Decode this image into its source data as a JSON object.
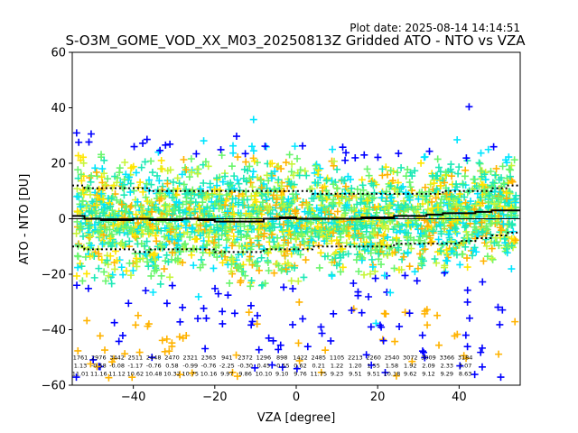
{
  "chart_data": {
    "type": "scatter",
    "title": "S-O3M_GOME_VOD_XX_M03_20250813Z Gridded ATO - NTO vs VZA",
    "plot_date": "Plot date: 2025-08-14 14:14:51",
    "xlabel": "VZA [degree]",
    "ylabel": "ATO - NTO [DU]",
    "xlim": [
      -55,
      55
    ],
    "ylim": [
      -60,
      60
    ],
    "xticks": [
      -40,
      -20,
      0,
      20,
      40
    ],
    "yticks": [
      -60,
      -40,
      -20,
      0,
      20,
      40,
      60
    ],
    "marker": "+",
    "colors": {
      "axis": "#000000",
      "blue": "#0000ff",
      "cyan": "#00e5ff",
      "turquoise": "#1de9b6",
      "lightgreen": "#69f56c",
      "yellowgreen": "#c6f53b",
      "yellow": "#ffe600",
      "orange": "#ffb300"
    },
    "bins_x": [
      -54,
      -50,
      -46,
      -42,
      -38,
      -34,
      -30,
      -26,
      -22,
      -18,
      -14,
      -10,
      -6,
      -2,
      2,
      6,
      10,
      14,
      18,
      22,
      26,
      30,
      34,
      38,
      42,
      46,
      50,
      54
    ],
    "mean": [
      1,
      0,
      -0.5,
      -0.5,
      0,
      -0.5,
      -0.5,
      0,
      -0.5,
      -1,
      -1,
      -1,
      0,
      0.5,
      0,
      0,
      0,
      0,
      0.5,
      0.5,
      1,
      1,
      1.5,
      2,
      2,
      2.5,
      3,
      3
    ],
    "upper_sigma": [
      12,
      11,
      11,
      11,
      11,
      10,
      10,
      10,
      10,
      10,
      10,
      10,
      10,
      10,
      10,
      9,
      9,
      9,
      9,
      9,
      9,
      9,
      9,
      10,
      10,
      10,
      11,
      12
    ],
    "lower_sigma": [
      -10,
      -11,
      -11,
      -11,
      -12,
      -11,
      -11,
      -11,
      -11,
      -12,
      -12,
      -12,
      -11,
      -11,
      -11,
      -10,
      -10,
      -10,
      -10,
      -10,
      -9,
      -9,
      -9,
      -9,
      -8,
      -7,
      -6,
      -5
    ],
    "stats_rows": [
      [
        "1761",
        "2976",
        "3442",
        "2511",
        "2448",
        "2470",
        "2321",
        "2363",
        "941",
        "2372",
        "1296",
        "898",
        "1422",
        "2485",
        "1105",
        "2213",
        "2260",
        "2540",
        "3072",
        "3009",
        "3366",
        "3184"
      ],
      [
        "1.13",
        "-0.58",
        "-0.08",
        "-1.17",
        "-0.76",
        "0.58",
        "-0.99",
        "-0.76",
        "-2.25",
        "-0.30",
        "0.45",
        "-0.55",
        "0.62",
        "0.21",
        "1.22",
        "1.20",
        "1.55",
        "1.58",
        "1.92",
        "2.09",
        "2.33",
        "3.07"
      ],
      [
        "11.01",
        "11.16",
        "11.12",
        "10.62",
        "10.48",
        "10.32",
        "10.75",
        "10.16",
        "9.97",
        "9.86",
        "10.10",
        "9.10",
        "9.76",
        "11.75",
        "9.23",
        "9.51",
        "9.51",
        "10.18",
        "9.62",
        "9.12",
        "9.29",
        "8.63"
      ]
    ],
    "stats_x": [
      -53,
      -48.5,
      -44,
      -39.5,
      -35,
      -30.5,
      -26,
      -21.5,
      -17,
      -12.5,
      -8,
      -3.5,
      1,
      5.5,
      10,
      14.5,
      19,
      23.5,
      28,
      32.5,
      37,
      41.5
    ]
  }
}
